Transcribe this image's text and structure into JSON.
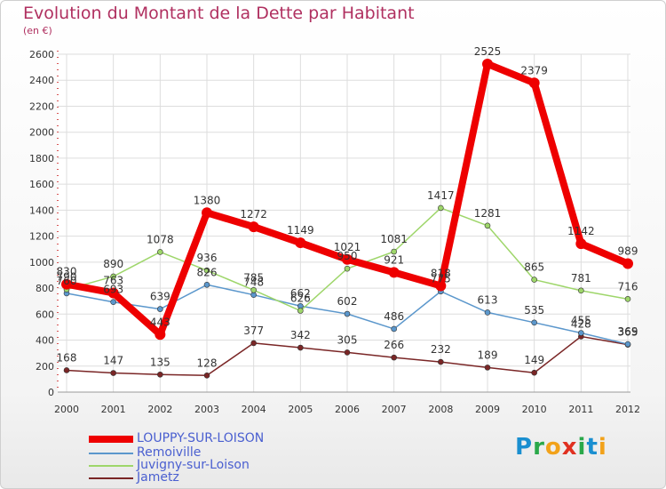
{
  "title": "Evolution du Montant de la Dette par Habitant",
  "unit": "(en €)",
  "logo": {
    "text": "Proxiti",
    "letters": [
      {
        "c": "P",
        "color": "#1a8fd0"
      },
      {
        "c": "r",
        "color": "#2aa84a"
      },
      {
        "c": "o",
        "color": "#f2a21a"
      },
      {
        "c": "x",
        "color": "#e03020"
      },
      {
        "c": "i",
        "color": "#2aa84a"
      },
      {
        "c": "t",
        "color": "#1a8fd0"
      },
      {
        "c": "i",
        "color": "#f2a21a"
      }
    ]
  },
  "chart_data": {
    "type": "line",
    "categories": [
      "2000",
      "2001",
      "2002",
      "2003",
      "2004",
      "2005",
      "2006",
      "2007",
      "2008",
      "2009",
      "2010",
      "2011",
      "2012"
    ],
    "ylim": [
      0,
      2600
    ],
    "yticks": [
      0,
      200,
      400,
      600,
      800,
      1000,
      1200,
      1400,
      1600,
      1800,
      2000,
      2200,
      2400,
      2600
    ],
    "grid": true,
    "legend_position": "bottom-left",
    "series": [
      {
        "name": "LOUPPY-SUR-LOISON",
        "color": "#ee0000",
        "width": 8,
        "values": [
          830,
          763,
          443,
          1380,
          1272,
          1149,
          1021,
          921,
          818,
          2525,
          2379,
          1142,
          989
        ]
      },
      {
        "name": "Remoiville",
        "color": "#5b97cc",
        "width": 1.5,
        "values": [
          760,
          693,
          639,
          826,
          748,
          662,
          602,
          486,
          775,
          613,
          535,
          455,
          369
        ]
      },
      {
        "name": "Juvigny-sur-Loison",
        "color": "#9ed66a",
        "width": 1.5,
        "values": [
          790,
          890,
          1078,
          936,
          785,
          626,
          950,
          1081,
          1417,
          1281,
          865,
          781,
          716
        ]
      },
      {
        "name": "Jametz",
        "color": "#7a2626",
        "width": 1.5,
        "values": [
          168,
          147,
          135,
          128,
          377,
          342,
          305,
          266,
          232,
          189,
          149,
          428,
          365
        ]
      }
    ]
  }
}
